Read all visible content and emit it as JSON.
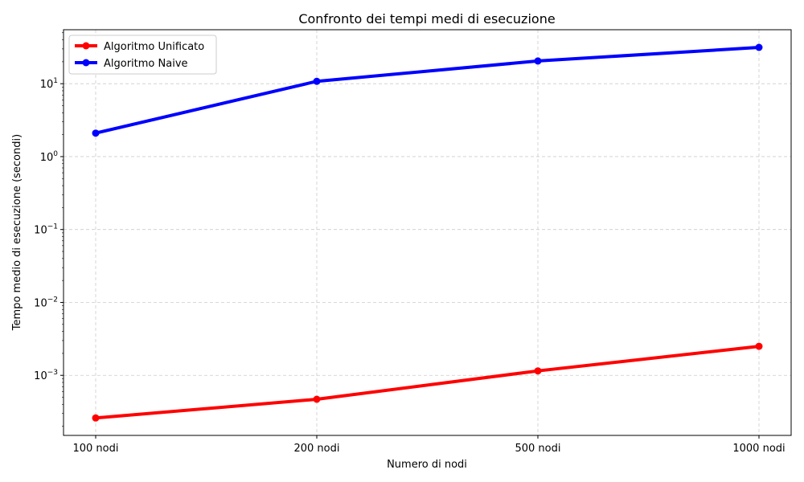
{
  "chart_data": {
    "type": "line",
    "title": "Confronto dei tempi medi di esecuzione",
    "xlabel": "Numero di nodi",
    "ylabel": "Tempo medio di esecuzione (secondi)",
    "categories": [
      "100 nodi",
      "200 nodi",
      "500 nodi",
      "1000 nodi"
    ],
    "yscale": "log",
    "ylim": [
      0.00015,
      55
    ],
    "yticks": [
      0.001,
      0.01,
      0.1,
      1,
      10
    ],
    "ytick_labels": [
      {
        "base": "10",
        "exp": "−3"
      },
      {
        "base": "10",
        "exp": "−2"
      },
      {
        "base": "10",
        "exp": "−1"
      },
      {
        "base": "10",
        "exp": "0"
      },
      {
        "base": "10",
        "exp": "1"
      }
    ],
    "grid": true,
    "legend_position": "upper-left",
    "series": [
      {
        "name": "Algoritmo Unificato",
        "color": "#ff0000",
        "values": [
          0.00026,
          0.00047,
          0.00115,
          0.0025
        ]
      },
      {
        "name": "Algoritmo Naive",
        "color": "#0000ff",
        "values": [
          2.1,
          10.8,
          20.5,
          31.5
        ]
      }
    ]
  }
}
